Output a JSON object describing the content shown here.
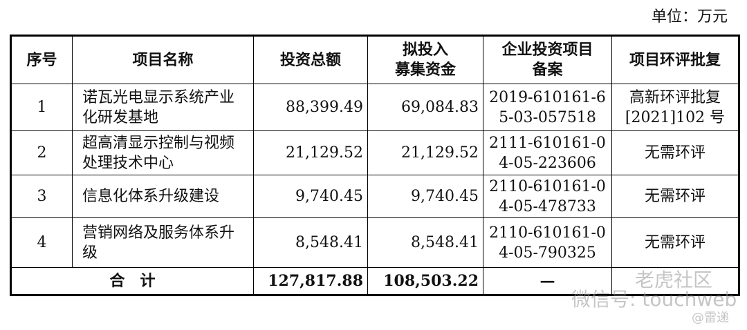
{
  "unit_label": "单位：万元",
  "table": {
    "headers": [
      "序号",
      "项目名称",
      "投资总额",
      "拟投入\n募集资金",
      "企业投资项目\n备案",
      "项目环评批复"
    ],
    "rows": [
      {
        "no": "1",
        "name": "诺瓦光电显示系统产业化研发基地",
        "total": "88,399.49",
        "raised": "69,084.83",
        "filing": "2019-610161-65-03-057518",
        "eia": "高新环评批复[2021]102 号"
      },
      {
        "no": "2",
        "name": "超高清显示控制与视频处理技术中心",
        "total": "21,129.52",
        "raised": "21,129.52",
        "filing": "2111-610161-04-05-223606",
        "eia": "无需环评"
      },
      {
        "no": "3",
        "name": "信息化体系升级建设",
        "total": "9,740.45",
        "raised": "9,740.45",
        "filing": "2110-610161-04-05-478733",
        "eia": "无需环评"
      },
      {
        "no": "4",
        "name": "营销网络及服务体系升级",
        "total": "8,548.41",
        "raised": "8,548.41",
        "filing": "2110-610161-04-05-790325",
        "eia": "无需环评"
      }
    ],
    "total_row": {
      "label": "合　计",
      "total": "127,817.88",
      "raised": "108,503.22",
      "filing": "—",
      "eia": ""
    }
  },
  "watermark": {
    "wechat": "微信号: touchweb",
    "community": "老虎社区",
    "author": "@雷递"
  }
}
